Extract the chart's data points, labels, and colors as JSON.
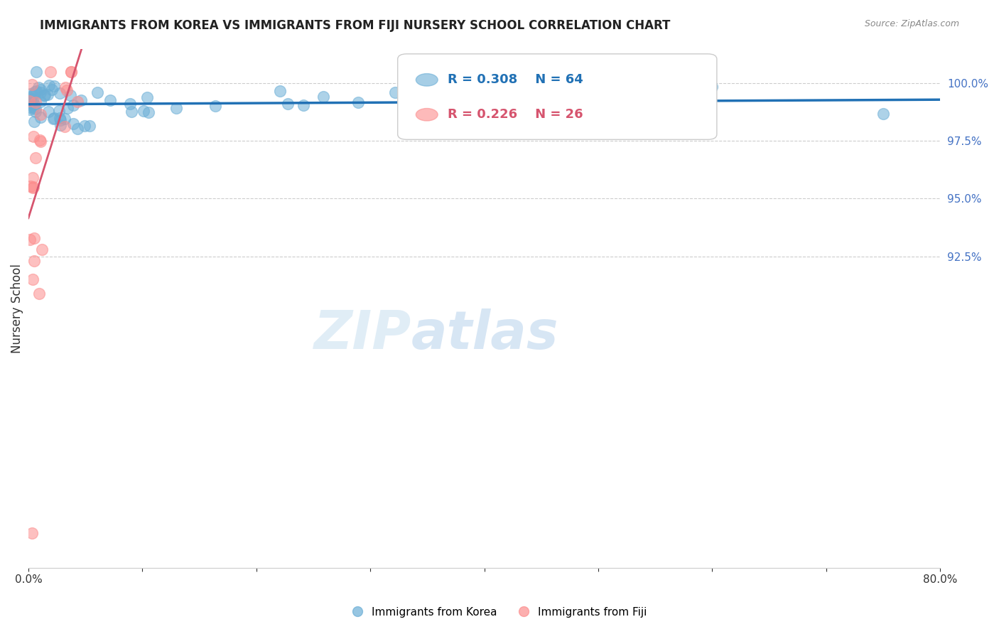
{
  "title": "IMMIGRANTS FROM KOREA VS IMMIGRANTS FROM FIJI NURSERY SCHOOL CORRELATION CHART",
  "source": "Source: ZipAtlas.com",
  "ylabel": "Nursery School",
  "legend_korea": "Immigrants from Korea",
  "legend_fiji": "Immigrants from Fiji",
  "R_korea": 0.308,
  "N_korea": 64,
  "R_fiji": 0.226,
  "N_fiji": 26,
  "korea_color": "#6baed6",
  "fiji_color": "#fc8d8d",
  "korea_line_color": "#2171b5",
  "fiji_line_color": "#d6546e",
  "xlim": [
    0.0,
    80.0
  ],
  "ylim": [
    79.0,
    101.5
  ],
  "ytick_vals": [
    92.5,
    95.0,
    97.5,
    100.0
  ],
  "watermark_zip": "ZIP",
  "watermark_atlas": "atlas"
}
